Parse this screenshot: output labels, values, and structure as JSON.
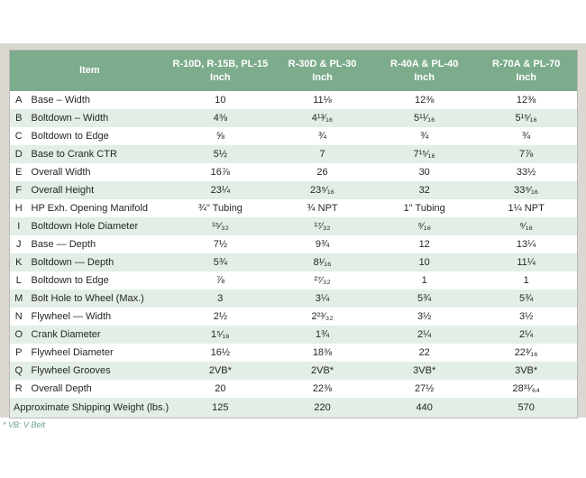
{
  "table": {
    "item_header": "Item",
    "columns": [
      {
        "models": "R-10D, R-15B, PL-15",
        "unit": "Inch"
      },
      {
        "models": "R-30D & PL-30",
        "unit": "Inch"
      },
      {
        "models": "R-40A & PL-40",
        "unit": "Inch"
      },
      {
        "models": "R-70A & PL-70",
        "unit": "Inch"
      }
    ],
    "rows": [
      {
        "letter": "A",
        "item": "Base – Width",
        "values": [
          "10",
          "11⅛",
          "12⅜",
          "12⅜"
        ]
      },
      {
        "letter": "B",
        "item": "Boltdown – Width",
        "values": [
          "4⅜",
          "4¹³⁄₁₆",
          "5¹¹⁄₁₆",
          "5¹⁵⁄₁₆"
        ]
      },
      {
        "letter": "C",
        "item": "Boltdown to Edge",
        "values": [
          "⅝",
          "¾",
          "¾",
          "¾"
        ]
      },
      {
        "letter": "D",
        "item": "Base to Crank CTR",
        "values": [
          "5½",
          "7",
          "7¹⁵⁄₁₆",
          "7⅞"
        ]
      },
      {
        "letter": "E",
        "item": "Overall Width",
        "values": [
          "16⅞",
          "26",
          "30",
          "33½"
        ]
      },
      {
        "letter": "F",
        "item": "Overall Height",
        "values": [
          "23¼",
          "23⁹⁄₁₆",
          "32",
          "33⁹⁄₁₆"
        ]
      },
      {
        "letter": "H",
        "item": "HP Exh. Opening Manifold",
        "values": [
          "¾\" Tubing",
          "¾ NPT",
          "1\" Tubing",
          "1¼ NPT"
        ]
      },
      {
        "letter": "I",
        "item": "Boltdown Hole Diameter",
        "values": [
          "¹⁵⁄₃₂",
          "¹⁷⁄₃₂",
          "⁹⁄₁₆",
          "⁹⁄₁₆"
        ]
      },
      {
        "letter": "J",
        "item": "Base — Depth",
        "values": [
          "7½",
          "9¾",
          "12",
          "13¼"
        ]
      },
      {
        "letter": "K",
        "item": "Boltdown — Depth",
        "values": [
          "5¾",
          "8¹⁄₁₆",
          "10",
          "11¼"
        ]
      },
      {
        "letter": "L",
        "item": "Boltdown to Edge",
        "values": [
          "⅞",
          "²⁷⁄₃₂",
          "1",
          "1"
        ]
      },
      {
        "letter": "M",
        "item": "Bolt Hole to Wheel (Max.)",
        "values": [
          "3",
          "3¼",
          "5¾",
          "5¾"
        ]
      },
      {
        "letter": "N",
        "item": "Flywheel — Width",
        "values": [
          "2½",
          "2²³⁄₃₂",
          "3½",
          "3½"
        ]
      },
      {
        "letter": "O",
        "item": "Crank Diameter",
        "values": [
          "1⁵⁄₁₆",
          "1¾",
          "2¼",
          "2¼"
        ]
      },
      {
        "letter": "P",
        "item": "Flywheel Diameter",
        "values": [
          "16½",
          "18⅜",
          "22",
          "22³⁄₁₆"
        ]
      },
      {
        "letter": "Q",
        "item": "Flywheel Grooves",
        "values": [
          "2VB*",
          "2VB*",
          "3VB*",
          "3VB*"
        ]
      },
      {
        "letter": "R",
        "item": "Overall Depth",
        "values": [
          "20",
          "22⅜",
          "27½",
          "28³¹⁄₆₄"
        ]
      }
    ],
    "footer_row": {
      "label": "Approximate Shipping Weight (lbs.)",
      "values": [
        "125",
        "220",
        "440",
        "570"
      ]
    }
  },
  "footnote": "* VB: V Belt",
  "colors": {
    "header_green": "#7dac8c",
    "row_shaded_green": "#e3eee6",
    "backdrop_gray": "#dbd8d2",
    "footnote_green": "#6ba287"
  }
}
